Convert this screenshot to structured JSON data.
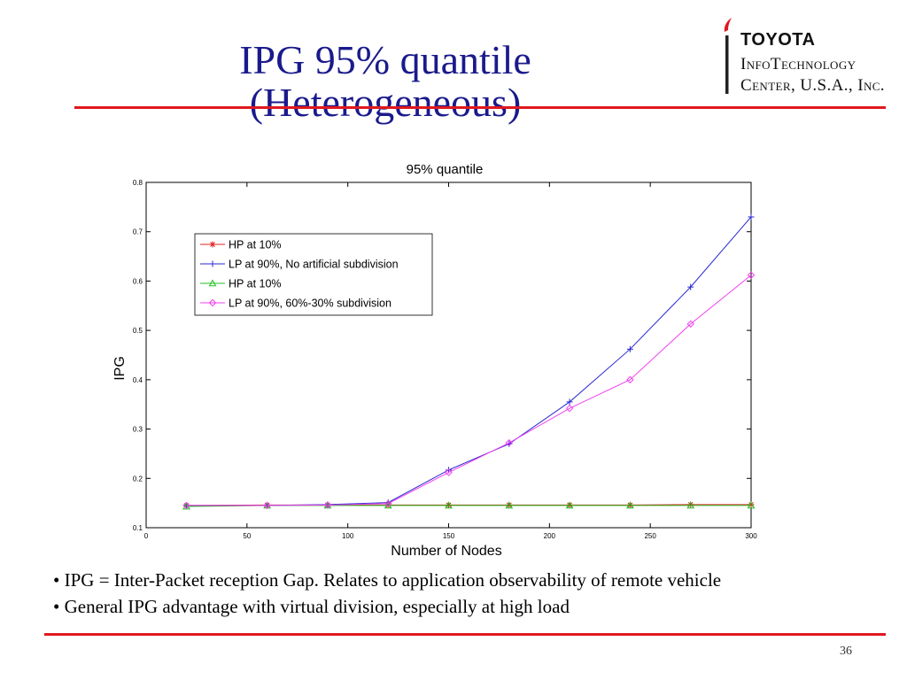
{
  "slide": {
    "title_line1": "IPG 95% quantile",
    "title_line2": "(Heterogeneous)",
    "page_number": "36",
    "accent_color": "#e0181e",
    "title_color": "#1a1a8c"
  },
  "logo": {
    "brand": "TOYOTA",
    "line1": "InfoTechnology",
    "line2": "Center, U.S.A., Inc."
  },
  "bullets": [
    "• IPG = Inter-Packet reception Gap. Relates to application observability of remote vehicle",
    "• General IPG advantage with virtual division, especially at high load"
  ],
  "chart_data": {
    "type": "line",
    "title": "95% quantile",
    "xlabel": "Number of Nodes",
    "ylabel": "IPG",
    "xlim": [
      0,
      300
    ],
    "ylim": [
      0.1,
      0.8
    ],
    "xticks": [
      0,
      50,
      100,
      150,
      200,
      250,
      300
    ],
    "xtick_labels": [
      "0",
      "50",
      "100",
      "150",
      "200",
      "250",
      "300"
    ],
    "yticks": [
      0.1,
      0.2,
      0.3,
      0.4,
      0.5,
      0.6,
      0.7,
      0.8
    ],
    "ytick_labels": [
      "0.1",
      "0.2",
      "0.3",
      "0.4",
      "0.5",
      "0.6",
      "0.7",
      "0.8"
    ],
    "grid": true,
    "legend_position": "upper-left",
    "x": [
      20,
      60,
      90,
      120,
      150,
      180,
      210,
      240,
      270,
      300
    ],
    "series": [
      {
        "name": "HP at 10%",
        "color": "#e02020",
        "marker": "star",
        "values": [
          0.145,
          0.146,
          0.146,
          0.146,
          0.146,
          0.146,
          0.146,
          0.146,
          0.147,
          0.147
        ]
      },
      {
        "name": "LP at 90%, No artificial subdivision",
        "color": "#2a2ad0",
        "marker": "plus",
        "values": [
          0.145,
          0.145,
          0.147,
          0.151,
          0.217,
          0.27,
          0.355,
          0.462,
          0.588,
          0.73
        ]
      },
      {
        "name": "HP at 10%",
        "color": "#20c020",
        "marker": "triangle",
        "values": [
          0.143,
          0.145,
          0.145,
          0.145,
          0.145,
          0.145,
          0.145,
          0.145,
          0.145,
          0.145
        ]
      },
      {
        "name": "LP at 90%, 60%-30% subdivision",
        "color": "#f040f0",
        "marker": "diamond",
        "values": [
          0.145,
          0.145,
          0.146,
          0.149,
          0.212,
          0.272,
          0.342,
          0.4,
          0.513,
          0.612
        ]
      }
    ]
  }
}
